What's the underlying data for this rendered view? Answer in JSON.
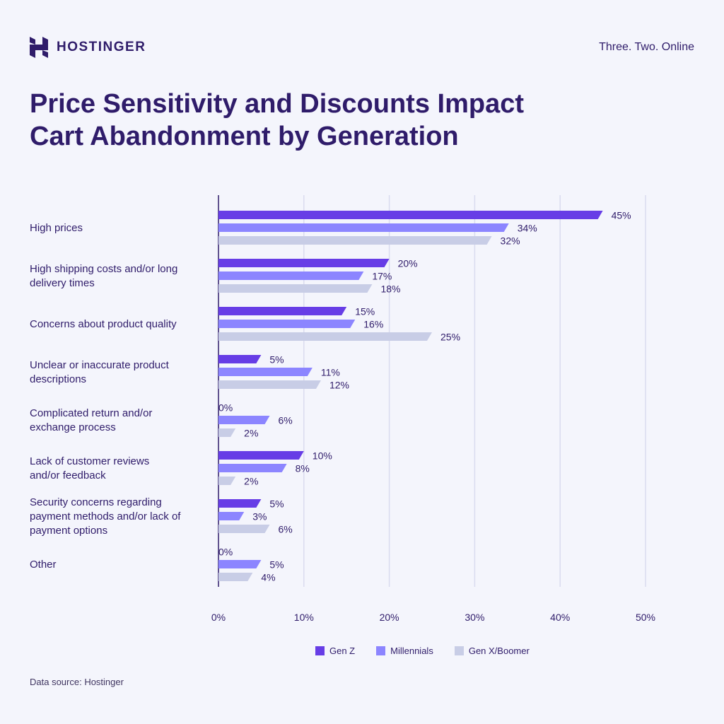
{
  "header": {
    "brand_name": "HOSTINGER",
    "brand_icon": "hostinger-logo-icon",
    "tagline": "Three. Two. Online"
  },
  "title_lines": [
    "Price Sensitivity and Discounts Impact",
    "Cart Abandonment by Generation"
  ],
  "footer": {
    "source": "Data source: Hostinger"
  },
  "colors": {
    "background": "#f4f5fc",
    "text": "#2f1c6a",
    "gen_z": "#673de6",
    "millennials": "#8c85ff",
    "gen_x_boomer": "#c8cde6",
    "gridline": "#d9dbef"
  },
  "chart_data": {
    "type": "bar",
    "orientation": "horizontal",
    "title": "Price Sensitivity and Discounts Impact Cart Abandonment by Generation",
    "xlabel": "",
    "ylabel": "",
    "xlim": [
      0,
      50
    ],
    "x_ticks": [
      0,
      10,
      20,
      30,
      40,
      50
    ],
    "x_tick_labels": [
      "0%",
      "10%",
      "20%",
      "30%",
      "40%",
      "50%"
    ],
    "value_suffix": "%",
    "grid": "vertical",
    "legend_position": "bottom",
    "categories": [
      [
        "High prices"
      ],
      [
        "High shipping costs and/or long",
        "delivery times"
      ],
      [
        "Concerns about product quality"
      ],
      [
        "Unclear or inaccurate product",
        "descriptions"
      ],
      [
        "Complicated return and/or",
        "exchange process"
      ],
      [
        "Lack of customer reviews",
        "and/or feedback"
      ],
      [
        "Security concerns regarding",
        "payment methods and/or lack of",
        "payment options"
      ],
      [
        "Other"
      ]
    ],
    "series": [
      {
        "name": "Gen Z",
        "color": "#673de6",
        "values": [
          45,
          20,
          15,
          5,
          0,
          10,
          5,
          0
        ]
      },
      {
        "name": "Millennials",
        "color": "#8c85ff",
        "values": [
          34,
          17,
          16,
          11,
          6,
          8,
          3,
          5
        ]
      },
      {
        "name": "Gen X/Boomer",
        "color": "#c8cde6",
        "values": [
          32,
          18,
          25,
          12,
          2,
          2,
          6,
          4
        ]
      }
    ]
  }
}
